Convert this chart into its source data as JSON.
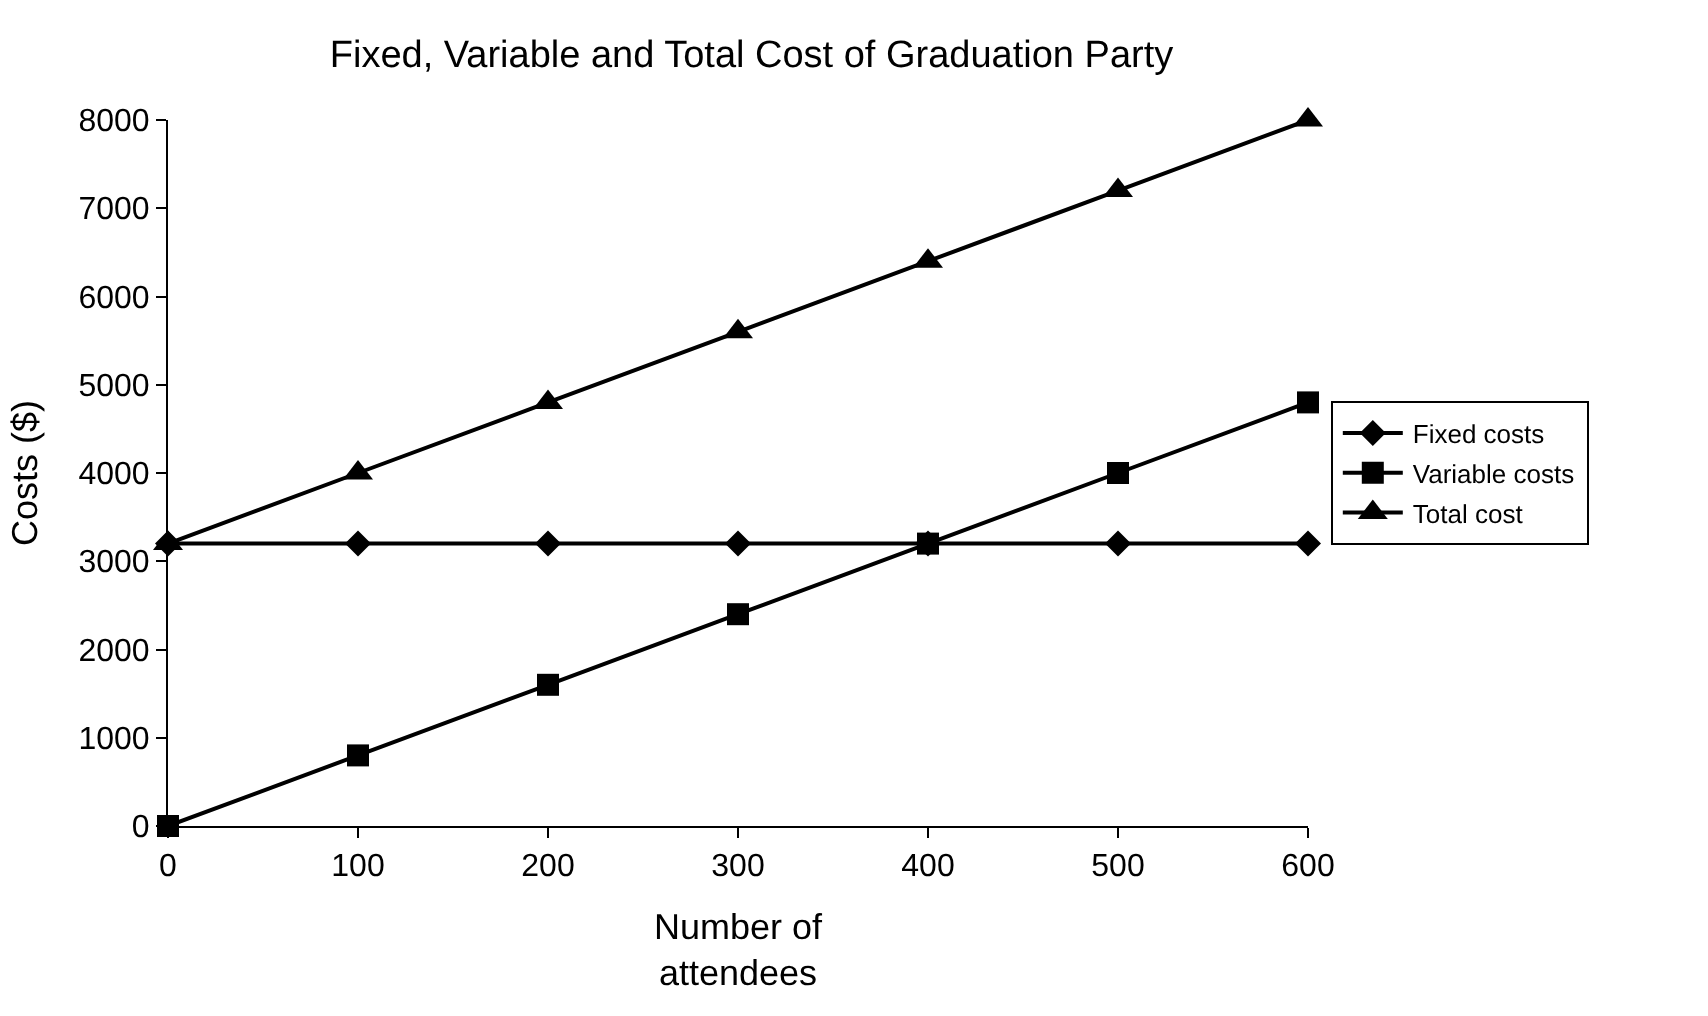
{
  "chart_data": {
    "type": "line",
    "title": "Fixed, Variable and Total Cost of Graduation Party",
    "xlabel": "Number of\nattendees",
    "ylabel": "Costs ($)",
    "x": [
      0,
      100,
      200,
      300,
      400,
      500,
      600
    ],
    "series": [
      {
        "name": "Fixed costs",
        "color": "#000000",
        "marker": "diamond",
        "values": [
          3200,
          3200,
          3200,
          3200,
          3200,
          3200,
          3200
        ]
      },
      {
        "name": "Variable costs",
        "color": "#000000",
        "marker": "square",
        "values": [
          0,
          800,
          1600,
          2400,
          3200,
          4000,
          4800
        ]
      },
      {
        "name": "Total cost",
        "color": "#000000",
        "marker": "triangle",
        "values": [
          3200,
          4000,
          4800,
          5600,
          6400,
          7200,
          8000
        ]
      }
    ],
    "xlim": [
      0,
      600
    ],
    "xticks": [
      0,
      100,
      200,
      300,
      400,
      500,
      600
    ],
    "ylim": [
      0,
      8000
    ],
    "yticks": [
      0,
      1000,
      2000,
      3000,
      4000,
      5000,
      6000,
      7000,
      8000
    ],
    "grid": false,
    "legend": "right",
    "line_style": "solid"
  }
}
